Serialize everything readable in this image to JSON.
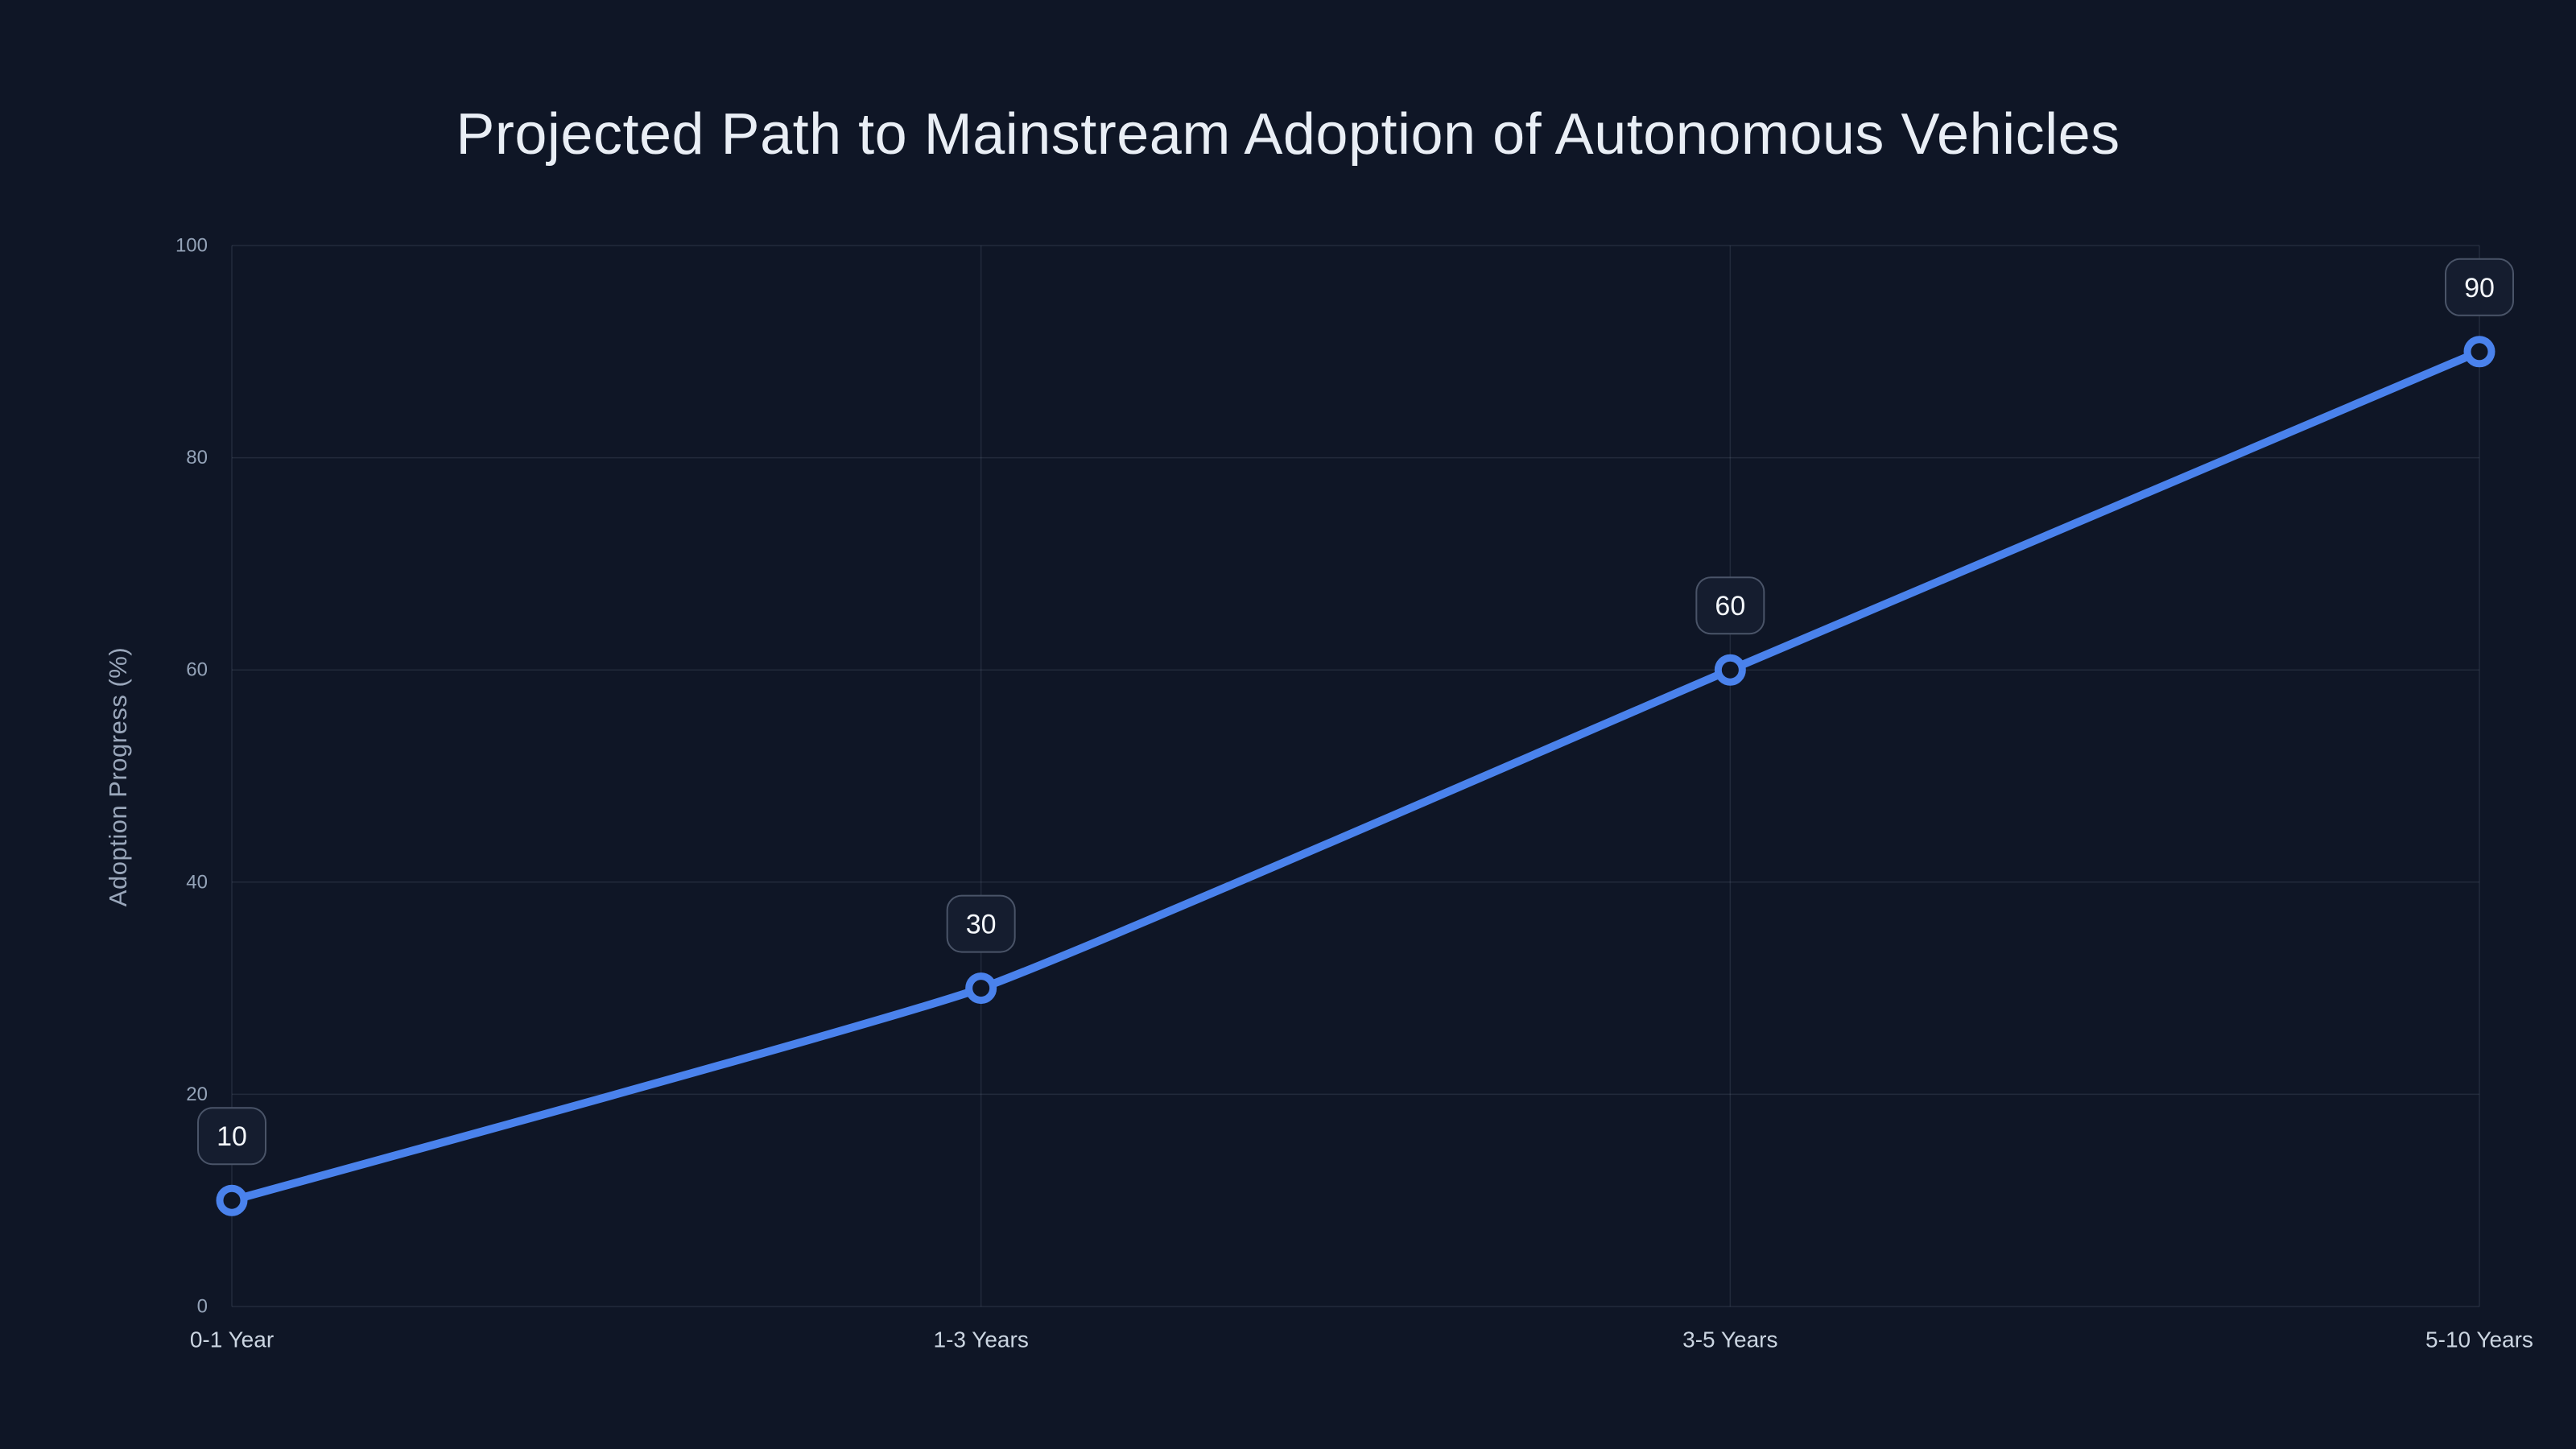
{
  "chart_data": {
    "type": "line",
    "title": "Projected Path to Mainstream Adoption of Autonomous Vehicles",
    "ylabel": "Adoption Progress (%)",
    "xlabel": "",
    "categories": [
      "0-1 Year",
      "1-3 Years",
      "3-5 Years",
      "5-10 Years"
    ],
    "series": [
      {
        "name": "Adoption Progress (%)",
        "values": [
          10,
          30,
          60,
          90
        ]
      }
    ],
    "point_labels": [
      "10",
      "30",
      "60",
      "90"
    ],
    "ylim": [
      0,
      100
    ],
    "yticks": [
      0,
      20,
      40,
      60,
      80,
      100
    ],
    "grid": true,
    "legend": "none",
    "colors": {
      "background": "#0f1626",
      "line": "#4a82ec",
      "marker_ring": "#4a82ec",
      "marker_fill": "#0f1626",
      "grid": "rgba(148,163,184,0.15)",
      "y_tick_text": "#94a3b8",
      "x_tick_text": "#cbd5e1",
      "axis_title_text": "#9aa7bb",
      "title_text": "#e9eef5",
      "label_box_bg": "#151d2f",
      "label_box_border": "#4a5468",
      "label_text": "#f4f7fb"
    }
  }
}
